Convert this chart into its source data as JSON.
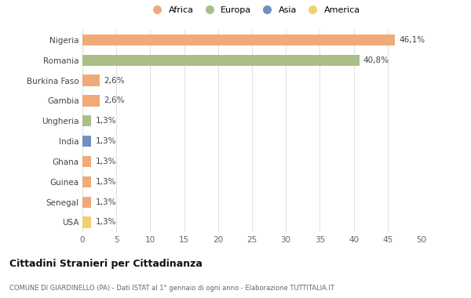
{
  "countries": [
    "Nigeria",
    "Romania",
    "Burkina Faso",
    "Gambia",
    "Ungheria",
    "India",
    "Ghana",
    "Guinea",
    "Senegal",
    "USA"
  ],
  "values": [
    46.1,
    40.8,
    2.6,
    2.6,
    1.3,
    1.3,
    1.3,
    1.3,
    1.3,
    1.3
  ],
  "labels": [
    "46,1%",
    "40,8%",
    "2,6%",
    "2,6%",
    "1,3%",
    "1,3%",
    "1,3%",
    "1,3%",
    "1,3%",
    "1,3%"
  ],
  "colors": [
    "#F0AA7A",
    "#AABF88",
    "#F0AA7A",
    "#F0AA7A",
    "#AABF88",
    "#7090C0",
    "#F0AA7A",
    "#F0AA7A",
    "#F0AA7A",
    "#F0D070"
  ],
  "legend_labels": [
    "Africa",
    "Europa",
    "Asia",
    "America"
  ],
  "legend_colors": [
    "#F0AA7A",
    "#AABF88",
    "#7090C0",
    "#F0D070"
  ],
  "title": "Cittadini Stranieri per Cittadinanza",
  "subtitle": "COMUNE DI GIARDINELLO (PA) - Dati ISTAT al 1° gennaio di ogni anno - Elaborazione TUTTITALIA.IT",
  "xlim": [
    0,
    50
  ],
  "xticks": [
    0,
    5,
    10,
    15,
    20,
    25,
    30,
    35,
    40,
    45,
    50
  ],
  "bg_color": "#FFFFFF",
  "grid_color": "#E0E0E0"
}
